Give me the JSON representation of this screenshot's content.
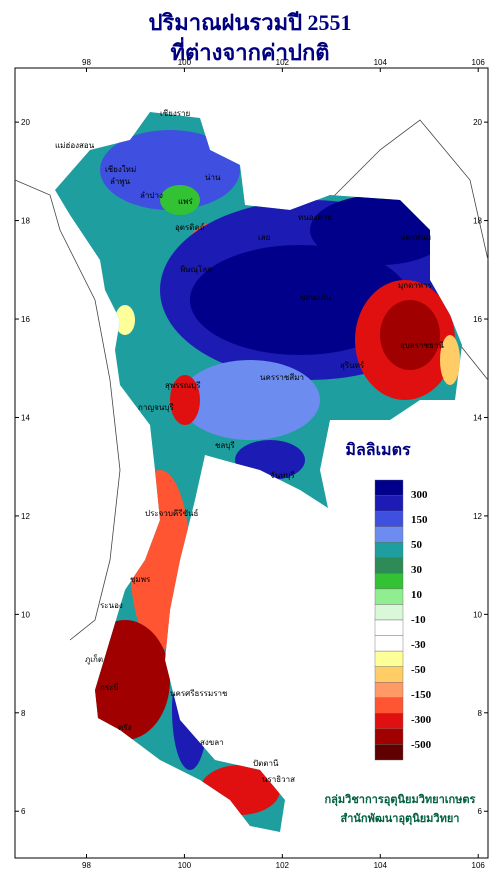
{
  "header": {
    "title": [
      "ปริมาณฝนรวมปี 2551",
      "ที่ต่างจากค่าปกติ"
    ]
  },
  "map": {
    "xlim": [
      96.54,
      106.2
    ],
    "ylim": [
      5.05,
      21.1
    ],
    "lon_ticks": [
      98,
      100,
      102,
      104,
      106
    ],
    "lat_ticks": [
      20,
      18,
      16,
      14,
      12,
      10,
      8,
      6
    ],
    "places": [
      "เชียงราย",
      "แม่ฮ่องสอน",
      "เชียงใหม่",
      "ลำพูน",
      "น่าน",
      "แพร่",
      "ลำปาง",
      "อุตรดิตถ์",
      "หนองคาย",
      "นครพนม",
      "มุกดาหาร",
      "อุบลราชธานี",
      "เลย",
      "พิษณุโลก",
      "ขอนแก่น",
      "สุรินทร์",
      "กาญจนบุรี",
      "สุพรรณบุรี",
      "นครราชสีมา",
      "ชลบุรี",
      "จันทบุรี",
      "ประจวบคีรีขันธ์",
      "ชุมพร",
      "ระนอง",
      "นครศรีธรรมราช",
      "กระบี่",
      "ภูเก็ต",
      "ตรัง",
      "สงขลา",
      "ปัตตานี",
      "นราธิวาส"
    ]
  },
  "legend": {
    "title": "มิลลิเมตร",
    "colors": [
      "#00008b",
      "#1c1cb4",
      "#3f4fe0",
      "#6d8cf0",
      "#1e9e9e",
      "#2e8b57",
      "#33c233",
      "#90ee90",
      "#d8f8d8",
      "#ffffff",
      "#ffffff",
      "#ffff99",
      "#ffcc66",
      "#ff9966",
      "#ff5533",
      "#e01010",
      "#a00000",
      "#600000"
    ],
    "labels": [
      "300",
      "150",
      "50",
      "30",
      "10",
      "-10",
      "-30",
      "-50",
      "-150",
      "-300",
      "-500"
    ]
  },
  "footer": {
    "lines": [
      "กลุ่มวิชาการอุตุนิยมวิทยาเกษตร",
      "สำนักพัฒนาอุตุนิยมวิทยา"
    ]
  }
}
